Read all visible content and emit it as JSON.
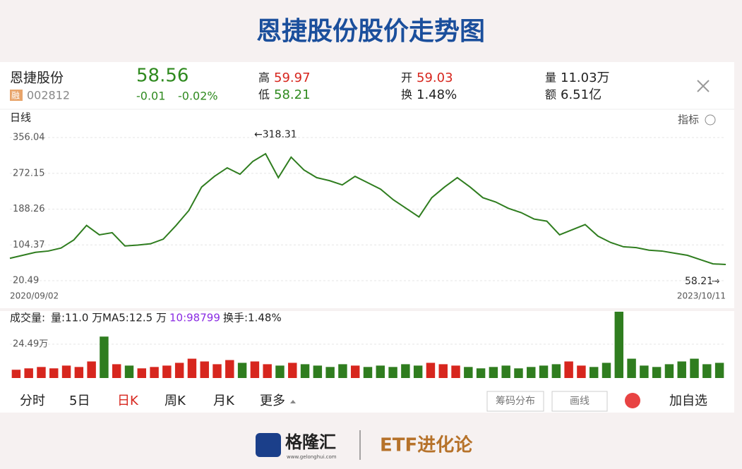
{
  "title": "恩捷股份股价走势图",
  "quote": {
    "name": "恩捷股份",
    "tag": "融",
    "code": "002812",
    "price": "58.56",
    "change": "-0.01",
    "change_pct": "-0.02%",
    "high_label": "高",
    "high": "59.97",
    "low_label": "低",
    "low": "58.21",
    "open_label": "开",
    "open": "59.03",
    "turnover_label": "换",
    "turnover": "1.48%",
    "volume_label": "量",
    "volume": "11.03万",
    "amount_label": "额",
    "amount": "6.51亿"
  },
  "period_label": "日线",
  "indicator_label": "指标",
  "chart_data": [
    {
      "type": "line",
      "color": "#2f7d1f",
      "categories": [
        "2020/09/02",
        null,
        null,
        null,
        null,
        null,
        null,
        null,
        null,
        null,
        null,
        null,
        null,
        null,
        null,
        null,
        null,
        null,
        null,
        null,
        null,
        null,
        null,
        null,
        null,
        null,
        null,
        null,
        null,
        null,
        null,
        null,
        null,
        null,
        null,
        null,
        null,
        null,
        null,
        null,
        null,
        null,
        null,
        null,
        null,
        null,
        null,
        null,
        null,
        null,
        null,
        null,
        null,
        null,
        null,
        null,
        "2023/10/11"
      ],
      "values": [
        73,
        80,
        87,
        90,
        97,
        116,
        150,
        128,
        133,
        102,
        104,
        107,
        118,
        150,
        185,
        240,
        265,
        285,
        270,
        300,
        318,
        262,
        310,
        280,
        262,
        255,
        245,
        265,
        250,
        235,
        210,
        190,
        170,
        215,
        240,
        262,
        240,
        215,
        205,
        190,
        180,
        165,
        160,
        128,
        140,
        152,
        125,
        110,
        100,
        98,
        92,
        90,
        85,
        80,
        70,
        60,
        58.56
      ],
      "ylim": [
        20.49,
        356.04
      ],
      "yticks": [
        20.49,
        104.37,
        188.26,
        272.15,
        356.04
      ],
      "grid": true,
      "annotations": [
        "←318.31",
        "58.21"
      ]
    },
    {
      "type": "bar",
      "title": "成交量:",
      "up_color": "#d7261e",
      "down_color": "#2f7d1f",
      "legend": [
        "量:11.0 万",
        "MA5:12.5 万",
        "10:98799",
        "换手:1.48%"
      ],
      "values": [
        6,
        7,
        8,
        7,
        9,
        8,
        12,
        30,
        10,
        9,
        7,
        8,
        9,
        11,
        14,
        12,
        10,
        13,
        11,
        12,
        10,
        9,
        11,
        10,
        9,
        8,
        10,
        9,
        8,
        9,
        8,
        10,
        9,
        11,
        10,
        9,
        8,
        7,
        8,
        9,
        7,
        8,
        9,
        10,
        12,
        9,
        8,
        11,
        48,
        14,
        9,
        8,
        10,
        12,
        14,
        10,
        11
      ],
      "ylim": [
        0,
        48.5
      ],
      "yticks": [
        {
          "value": 24.49,
          "label": "24.49万"
        }
      ],
      "grid": true
    }
  ],
  "tabs": [
    "分时",
    "5日",
    "日K",
    "周K",
    "月K",
    "更多"
  ],
  "buttons": [
    "筹码分布",
    "画线",
    "加自选"
  ],
  "footer": {
    "brand": "格隆汇",
    "url": "www.gelonghui.com",
    "partner": "ETF进化论"
  }
}
